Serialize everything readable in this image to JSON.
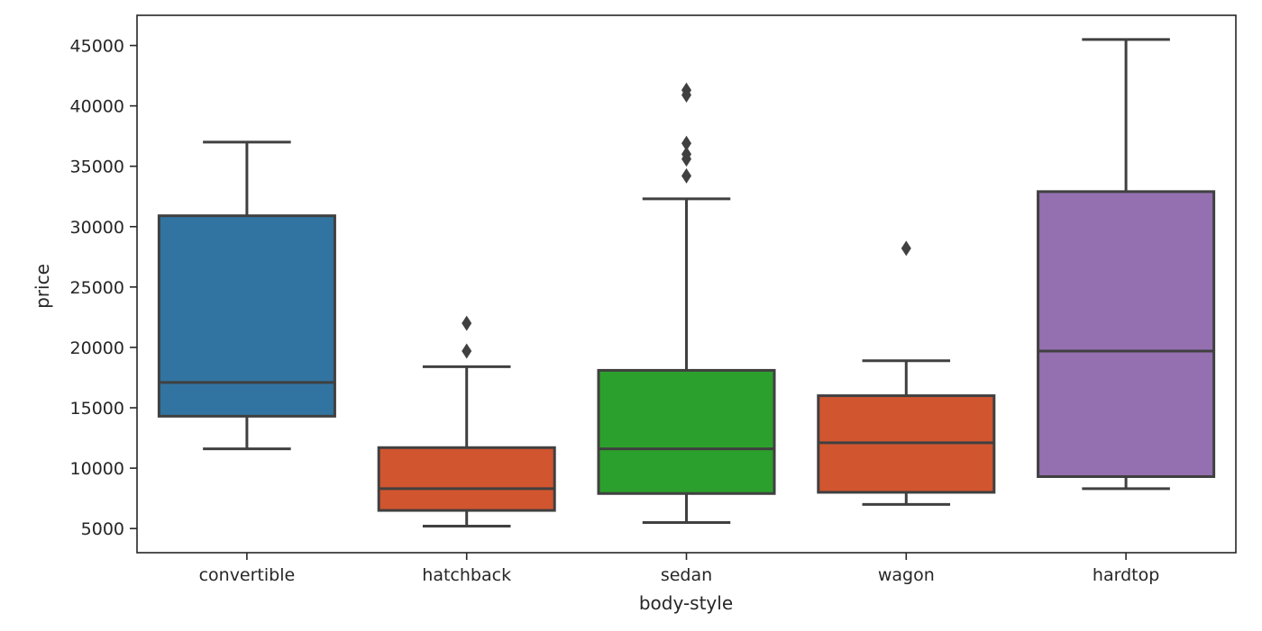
{
  "chart_data": {
    "type": "box",
    "xlabel": "body-style",
    "ylabel": "price",
    "ylim": [
      3000,
      47500
    ],
    "yticks": [
      5000,
      10000,
      15000,
      20000,
      25000,
      30000,
      35000,
      40000,
      45000
    ],
    "grid": false,
    "categories": [
      "convertible",
      "hatchback",
      "sedan",
      "wagon",
      "hardtop"
    ],
    "boxes": [
      {
        "category": "convertible",
        "color": "#3274a1",
        "whisker_low": 11600,
        "q1": 14300,
        "median": 17100,
        "q3": 30900,
        "whisker_high": 37000,
        "outliers": []
      },
      {
        "category": "hatchback",
        "color": "#d1552f",
        "whisker_low": 5200,
        "q1": 6500,
        "median": 8300,
        "q3": 11700,
        "whisker_high": 18400,
        "outliers": [
          19700,
          22000
        ]
      },
      {
        "category": "sedan",
        "color": "#2ca02c",
        "whisker_low": 5500,
        "q1": 7900,
        "median": 11600,
        "q3": 18100,
        "whisker_high": 32300,
        "outliers": [
          34200,
          35600,
          36000,
          36900,
          40900,
          41300
        ]
      },
      {
        "category": "wagon",
        "color": "#d1552f",
        "whisker_low": 7000,
        "q1": 8000,
        "median": 12100,
        "q3": 16000,
        "whisker_high": 18900,
        "outliers": [
          28200
        ]
      },
      {
        "category": "hardtop",
        "color": "#9470b0",
        "whisker_low": 8300,
        "q1": 9300,
        "median": 19700,
        "q3": 32900,
        "whisker_high": 45500,
        "outliers": []
      }
    ]
  }
}
